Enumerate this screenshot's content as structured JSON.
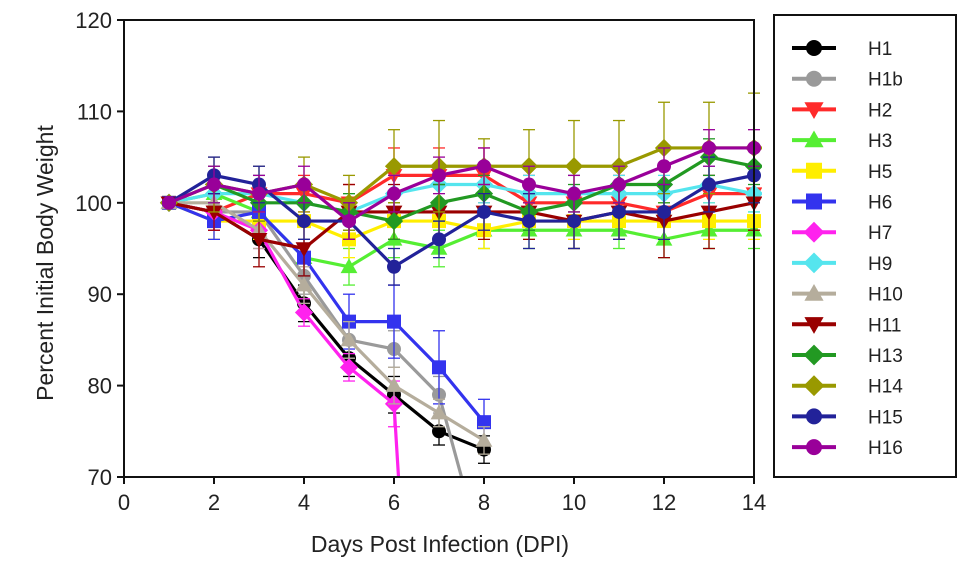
{
  "chart_data": {
    "type": "line",
    "title": "",
    "xlabel": "Days Post Infection (DPI)",
    "ylabel": "Percent Initial Body Weight",
    "xlim": [
      0,
      14
    ],
    "ylim": [
      70,
      120
    ],
    "x_ticks": [
      0,
      2,
      4,
      6,
      8,
      10,
      12,
      14
    ],
    "y_ticks": [
      70,
      80,
      90,
      100,
      110,
      120
    ],
    "grid": false,
    "legend_position": "right",
    "series": [
      {
        "name": "H1",
        "color": "#000000",
        "marker": "circle",
        "x": [
          1,
          2,
          3,
          4,
          5,
          6,
          7,
          8
        ],
        "y": [
          100,
          99,
          96,
          89,
          83,
          79,
          75,
          73
        ],
        "err": [
          0,
          1,
          2,
          2,
          2,
          2,
          1.5,
          1.5
        ]
      },
      {
        "name": "H1b",
        "color": "#9a9a9a",
        "marker": "circle",
        "x": [
          1,
          2,
          3,
          4,
          5,
          6,
          7,
          7.5
        ],
        "y": [
          100,
          99,
          99,
          92,
          85,
          84,
          79,
          70
        ],
        "err": [
          0,
          1,
          2,
          2,
          2,
          2,
          2,
          0
        ]
      },
      {
        "name": "H2",
        "color": "#ff2a2a",
        "marker": "triangle-down",
        "x": [
          1,
          2,
          3,
          4,
          5,
          6,
          7,
          8,
          9,
          10,
          11,
          12,
          13,
          14
        ],
        "y": [
          100,
          99,
          101,
          101,
          100,
          103,
          103,
          103,
          100,
          100,
          100,
          99,
          101,
          101
        ],
        "err": [
          0,
          2,
          2,
          2,
          2,
          3,
          3,
          3,
          3,
          3,
          3,
          3,
          3,
          3
        ]
      },
      {
        "name": "H3",
        "color": "#55ee33",
        "marker": "triangle-up",
        "x": [
          1,
          2,
          3,
          4,
          5,
          6,
          7,
          8,
          9,
          10,
          11,
          12,
          13,
          14
        ],
        "y": [
          100,
          101,
          99,
          94,
          93,
          96,
          95,
          97,
          97,
          97,
          97,
          96,
          97,
          97
        ],
        "err": [
          0,
          2,
          2,
          2,
          2,
          2,
          2,
          2,
          2,
          2,
          2,
          2,
          2,
          2
        ]
      },
      {
        "name": "H5",
        "color": "#ffee00",
        "marker": "square",
        "x": [
          1,
          2,
          3,
          4,
          5,
          6,
          7,
          8,
          9,
          10,
          11,
          12,
          13,
          14
        ],
        "y": [
          100,
          98,
          98,
          98,
          96,
          98,
          98,
          97,
          98,
          98,
          98,
          98,
          98,
          98
        ],
        "err": [
          0,
          2,
          2,
          2,
          2,
          2,
          2,
          2,
          2,
          2,
          2,
          2,
          2,
          2
        ]
      },
      {
        "name": "H6",
        "color": "#3333ee",
        "marker": "square",
        "x": [
          1,
          2,
          3,
          4,
          5,
          6,
          7,
          8
        ],
        "y": [
          100,
          98,
          99,
          94,
          87,
          87,
          82,
          76
        ],
        "err": [
          0,
          2,
          2,
          2,
          3,
          4,
          4,
          2.5
        ]
      },
      {
        "name": "H7",
        "color": "#ff22ee",
        "marker": "diamond",
        "x": [
          1,
          2,
          3,
          4,
          5,
          6,
          6.1
        ],
        "y": [
          100,
          99,
          97,
          88,
          82,
          78,
          70
        ],
        "err": [
          0,
          2,
          2,
          1.5,
          1.5,
          2.5,
          0
        ]
      },
      {
        "name": "H9",
        "color": "#55e5ee",
        "marker": "diamond",
        "x": [
          1,
          2,
          3,
          4,
          5,
          6,
          7,
          8,
          9,
          10,
          11,
          12,
          13,
          14
        ],
        "y": [
          100,
          101,
          101,
          100,
          99,
          101,
          102,
          102,
          101,
          101,
          101,
          101,
          102,
          101
        ],
        "err": [
          0,
          2,
          2,
          2,
          2,
          2,
          2,
          2,
          2,
          2,
          2,
          2,
          2,
          2
        ]
      },
      {
        "name": "H10",
        "color": "#b5ad9c",
        "marker": "triangle-up",
        "x": [
          1,
          2,
          3,
          4,
          5,
          6,
          7,
          8
        ],
        "y": [
          100,
          100,
          97,
          91,
          85,
          80,
          77,
          74
        ],
        "err": [
          0,
          1,
          2,
          2,
          2,
          2,
          1.5,
          1.5
        ]
      },
      {
        "name": "H11",
        "color": "#990000",
        "marker": "triangle-down",
        "x": [
          1,
          2,
          3,
          4,
          5,
          6,
          7,
          8,
          9,
          10,
          11,
          12,
          13,
          14
        ],
        "y": [
          100,
          99,
          96,
          95,
          99,
          99,
          99,
          99,
          99,
          98,
          99,
          98,
          99,
          100
        ],
        "err": [
          0,
          2,
          3,
          3,
          3,
          3,
          3,
          3,
          3,
          3,
          3,
          4,
          4,
          3
        ]
      },
      {
        "name": "H13",
        "color": "#229922",
        "marker": "diamond",
        "x": [
          1,
          2,
          3,
          4,
          5,
          6,
          7,
          8,
          9,
          10,
          11,
          12,
          13,
          14
        ],
        "y": [
          100,
          102,
          100,
          100,
          99,
          98,
          100,
          101,
          99,
          100,
          102,
          102,
          105,
          104
        ],
        "err": [
          0,
          2,
          2,
          2,
          2,
          2,
          2,
          2,
          2,
          2,
          2,
          2,
          2,
          2
        ]
      },
      {
        "name": "H14",
        "color": "#999900",
        "marker": "diamond",
        "x": [
          1,
          2,
          3,
          4,
          5,
          6,
          7,
          8,
          9,
          10,
          11,
          12,
          13,
          14
        ],
        "y": [
          100,
          102,
          101,
          102,
          100,
          104,
          104,
          104,
          104,
          104,
          104,
          106,
          106,
          106
        ],
        "err": [
          0,
          3,
          3,
          3,
          3,
          4,
          5,
          3,
          4,
          5,
          5,
          5,
          5,
          6
        ]
      },
      {
        "name": "H15",
        "color": "#222299",
        "marker": "circle",
        "x": [
          1,
          2,
          3,
          4,
          5,
          6,
          7,
          8,
          9,
          10,
          11,
          12,
          13,
          14
        ],
        "y": [
          100,
          103,
          102,
          98,
          98,
          93,
          96,
          99,
          98,
          98,
          99,
          99,
          102,
          103
        ],
        "err": [
          0,
          2,
          2,
          2,
          2,
          2,
          2,
          2,
          3,
          3,
          3,
          3,
          3,
          3
        ]
      },
      {
        "name": "H16",
        "color": "#990099",
        "marker": "circle",
        "x": [
          1,
          2,
          3,
          4,
          5,
          6,
          7,
          8,
          9,
          10,
          11,
          12,
          13,
          14
        ],
        "y": [
          100,
          102,
          101,
          102,
          98,
          101,
          103,
          104,
          102,
          101,
          102,
          104,
          106,
          106
        ],
        "err": [
          0,
          2,
          2,
          2,
          2,
          2,
          2,
          2,
          2,
          2,
          2,
          2,
          2,
          2
        ]
      }
    ]
  }
}
